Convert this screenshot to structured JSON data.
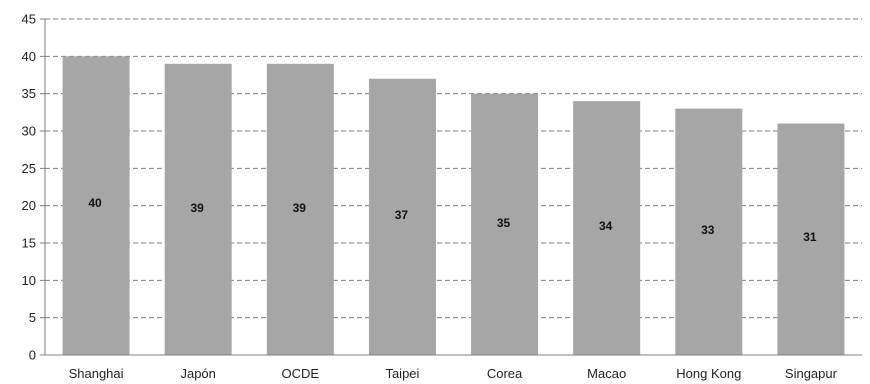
{
  "chart_data": {
    "type": "bar",
    "title": "",
    "xlabel": "",
    "ylabel": "",
    "categories": [
      "Shanghai",
      "Japón",
      "OCDE",
      "Taipei",
      "Corea",
      "Macao",
      "Hong Kong",
      "Singapur"
    ],
    "values": [
      40,
      39,
      39,
      37,
      35,
      34,
      33,
      31
    ],
    "data_labels": [
      "40",
      "39",
      "39",
      "37",
      "35",
      "34",
      "33",
      "31"
    ],
    "ylim": [
      0,
      45
    ],
    "yticks": [
      "0",
      "5",
      "10",
      "15",
      "20",
      "25",
      "30",
      "35",
      "40",
      "45"
    ],
    "grid": true,
    "grid_style": "dashed",
    "bar_color": "#a6a6a6",
    "grid_color": "#7f7f7f",
    "label_color": "#111111"
  }
}
